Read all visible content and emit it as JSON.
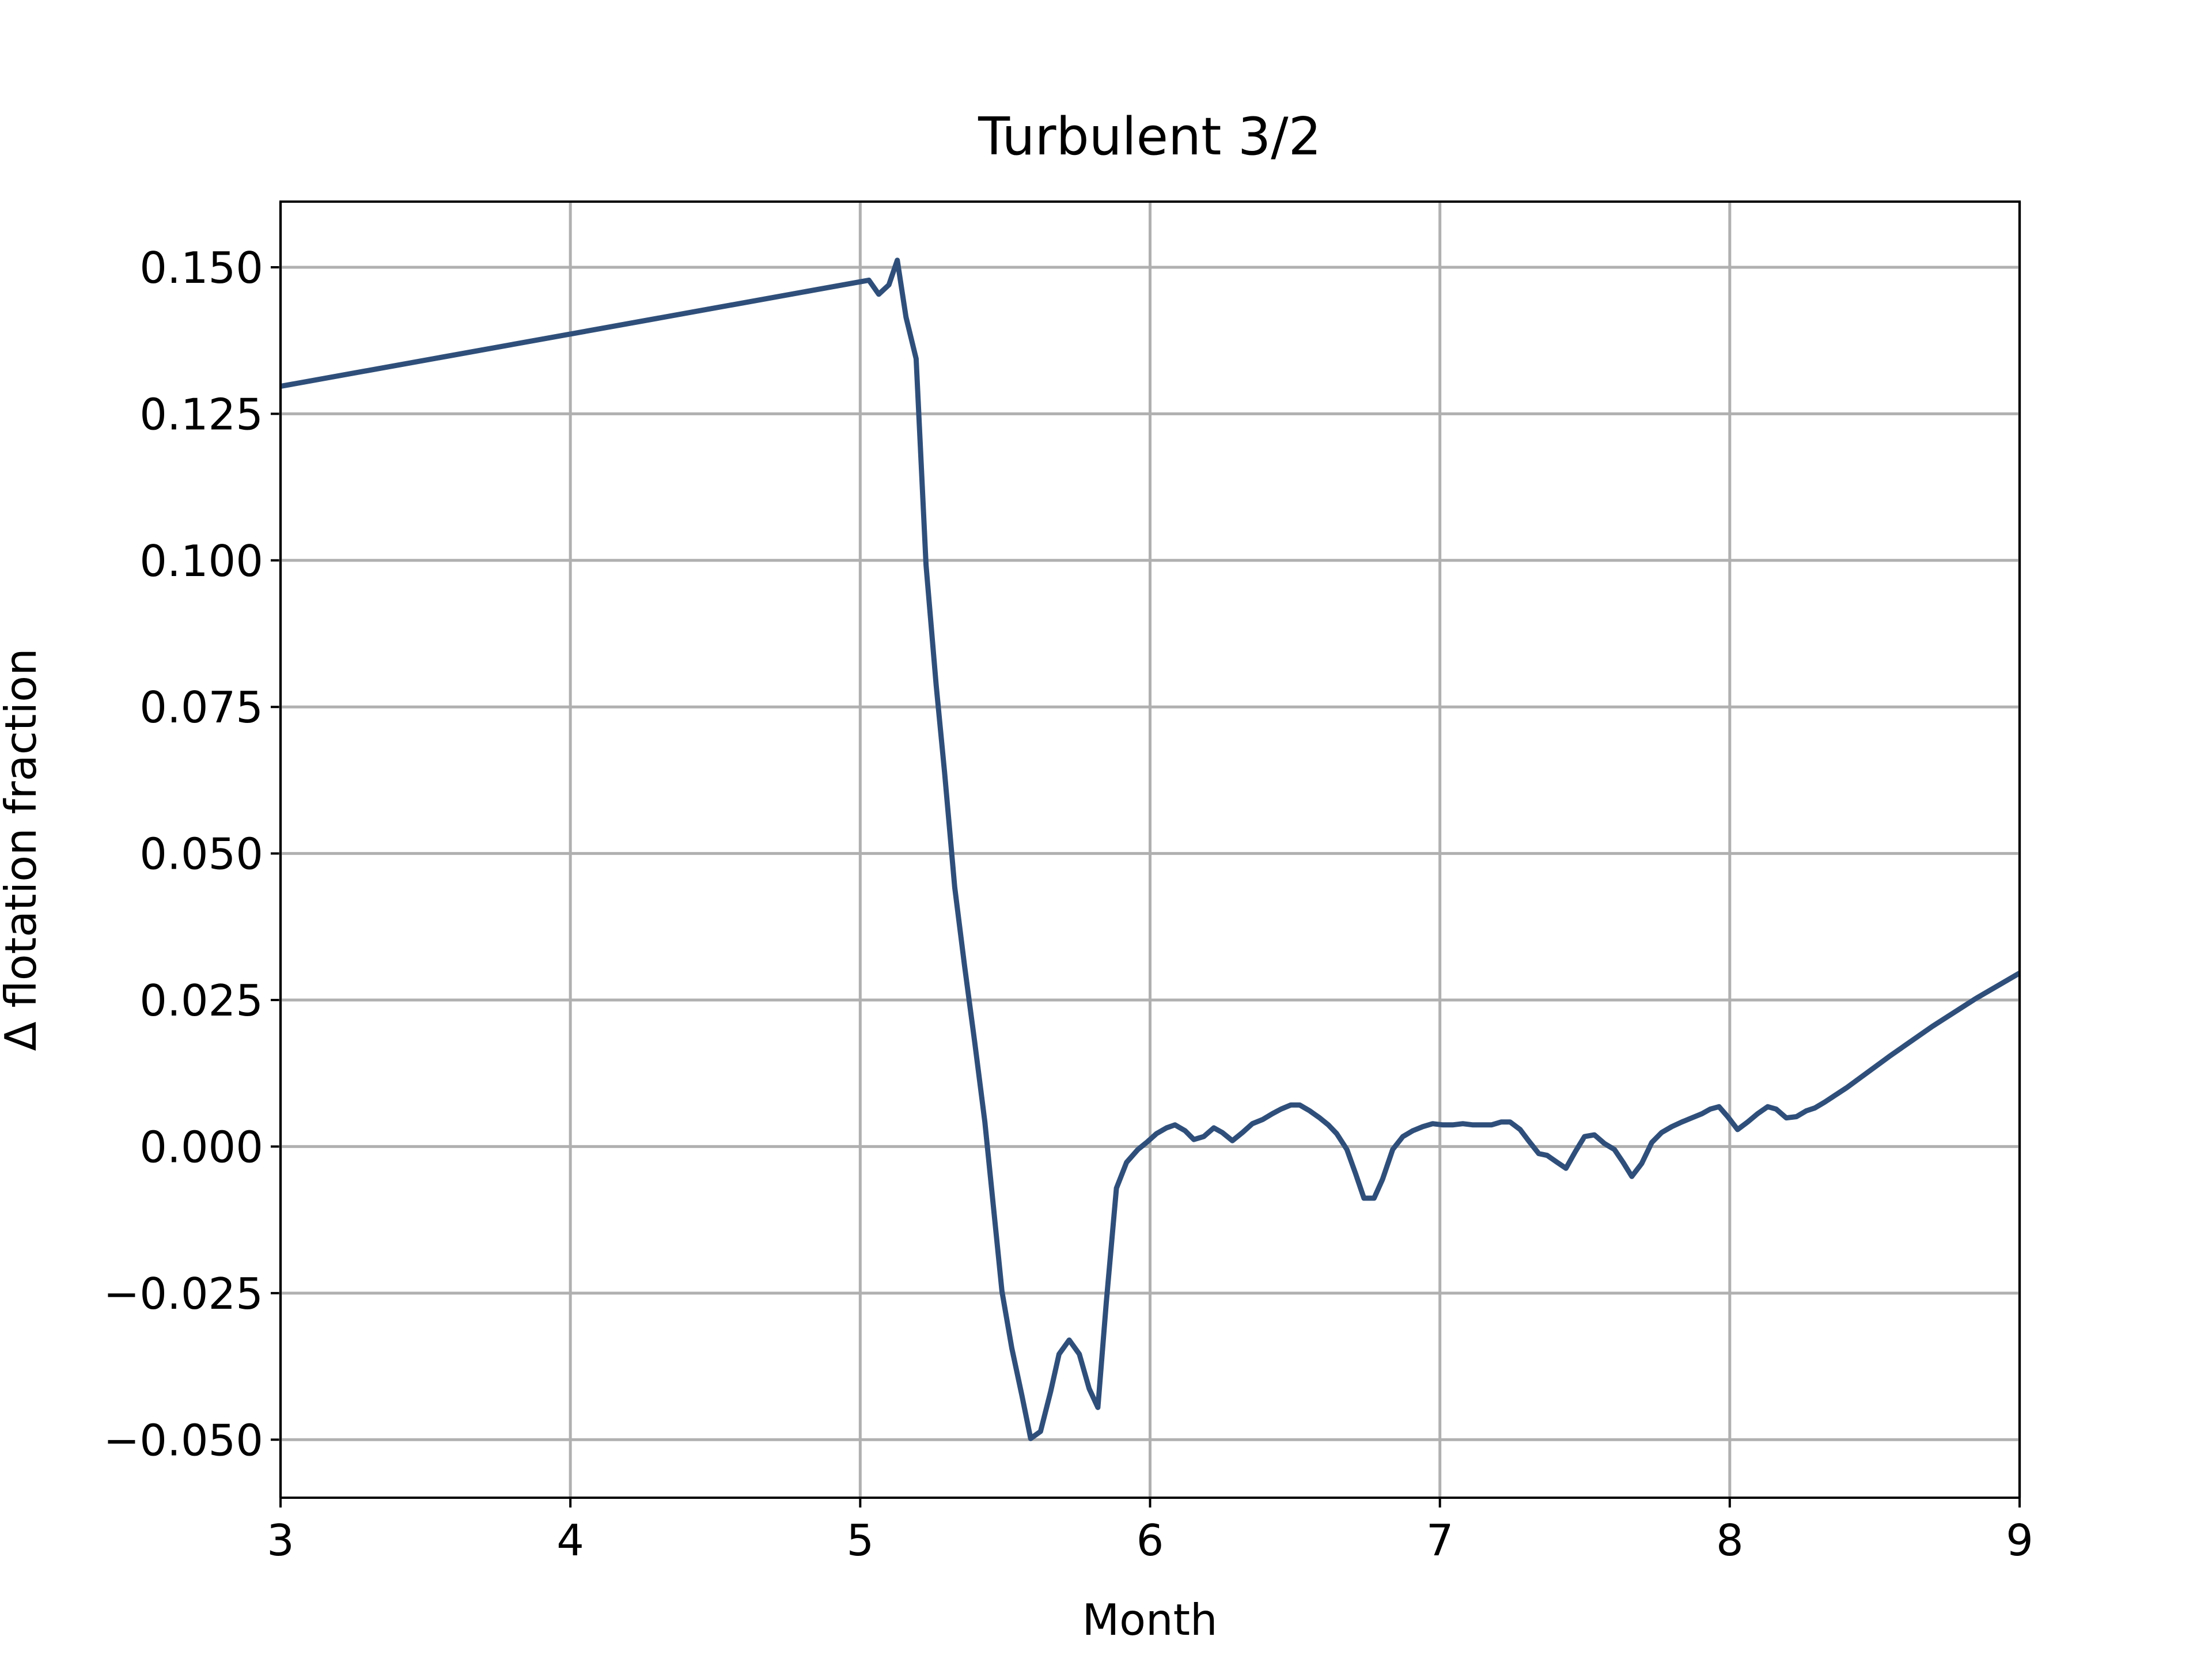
{
  "chart_data": {
    "type": "line",
    "title": "Turbulent 3/2",
    "xlabel": "Month",
    "ylabel": "Δ flotation fraction",
    "color": "#2f4f7a",
    "grid": true,
    "xlim": [
      3,
      9
    ],
    "xticks": [
      3,
      4,
      5,
      6,
      7,
      8,
      9
    ],
    "ylim": [
      -0.0599,
      0.1612
    ],
    "yticks": [
      {
        "value": -0.05,
        "label": "−0.050"
      },
      {
        "value": -0.025,
        "label": "−0.025"
      },
      {
        "value": 0,
        "label": "0.000"
      },
      {
        "value": 0.025,
        "label": "0.025"
      },
      {
        "value": 0.05,
        "label": "0.050"
      },
      {
        "value": 0.075,
        "label": "0.075"
      },
      {
        "value": 0.1,
        "label": "0.100"
      },
      {
        "value": 0.125,
        "label": "0.125"
      },
      {
        "value": 0.15,
        "label": "0.150"
      }
    ],
    "x": [
      3,
      5.03,
      5.064,
      5.099,
      5.128,
      5.158,
      5.193,
      5.227,
      5.262,
      5.291,
      5.326,
      5.36,
      5.395,
      5.43,
      5.459,
      5.489,
      5.523,
      5.558,
      5.588,
      5.622,
      5.657,
      5.686,
      5.721,
      5.756,
      5.79,
      5.82,
      5.849,
      5.884,
      5.919,
      5.958,
      5.988,
      6.022,
      6.057,
      6.086,
      6.121,
      6.151,
      6.185,
      6.22,
      6.249,
      6.284,
      6.319,
      6.353,
      6.388,
      6.422,
      6.452,
      6.486,
      6.516,
      6.551,
      6.585,
      6.615,
      6.644,
      6.679,
      6.709,
      6.738,
      6.773,
      6.802,
      6.837,
      6.872,
      6.906,
      6.941,
      6.975,
      7.01,
      7.044,
      7.079,
      7.114,
      7.148,
      7.178,
      7.212,
      7.242,
      7.277,
      7.306,
      7.341,
      7.37,
      7.405,
      7.435,
      7.469,
      7.499,
      7.533,
      7.568,
      7.602,
      7.632,
      7.662,
      7.696,
      7.731,
      7.765,
      7.8,
      7.835,
      7.869,
      7.904,
      7.933,
      7.963,
      7.993,
      8.027,
      8.062,
      8.096,
      8.131,
      8.16,
      8.195,
      8.23,
      8.264,
      8.294,
      8.328,
      8.402,
      8.551,
      8.699,
      8.847,
      9
    ],
    "values": [
      0.1297,
      0.1478,
      0.1454,
      0.147,
      0.1512,
      0.1415,
      0.1344,
      0.0992,
      0.0787,
      0.0638,
      0.0442,
      0.0308,
      0.0178,
      0.0042,
      -0.01,
      -0.0247,
      -0.0344,
      -0.0425,
      -0.0498,
      -0.0486,
      -0.0418,
      -0.0354,
      -0.033,
      -0.0354,
      -0.0413,
      -0.0445,
      -0.0266,
      -0.0071,
      -0.0027,
      -0.0005,
      0.0007,
      0.0022,
      0.0032,
      0.0037,
      0.0027,
      0.0012,
      0.0017,
      0.0032,
      0.0024,
      0.001,
      0.0024,
      0.0039,
      0.0046,
      0.0056,
      0.0064,
      0.0071,
      0.0071,
      0.0061,
      0.0049,
      0.0037,
      0.0022,
      -0.0005,
      -0.0046,
      -0.0088,
      -0.0088,
      -0.0056,
      -0.0005,
      0.0017,
      0.0027,
      0.0034,
      0.0039,
      0.0037,
      0.0037,
      0.0039,
      0.0037,
      0.0037,
      0.0037,
      0.0042,
      0.0042,
      0.0029,
      0.001,
      -0.0012,
      -0.0015,
      -0.0027,
      -0.0037,
      -0.0007,
      0.0017,
      0.002,
      0.0005,
      -0.0005,
      -0.0027,
      -0.0051,
      -0.0029,
      0.0007,
      0.0024,
      0.0034,
      0.0042,
      0.0049,
      0.0056,
      0.0064,
      0.0068,
      0.0051,
      0.0029,
      0.0042,
      0.0056,
      0.0068,
      0.0064,
      0.0049,
      0.0051,
      0.0061,
      0.0066,
      0.0076,
      0.01,
      0.0154,
      0.0205,
      0.0252,
      0.0296
    ]
  }
}
